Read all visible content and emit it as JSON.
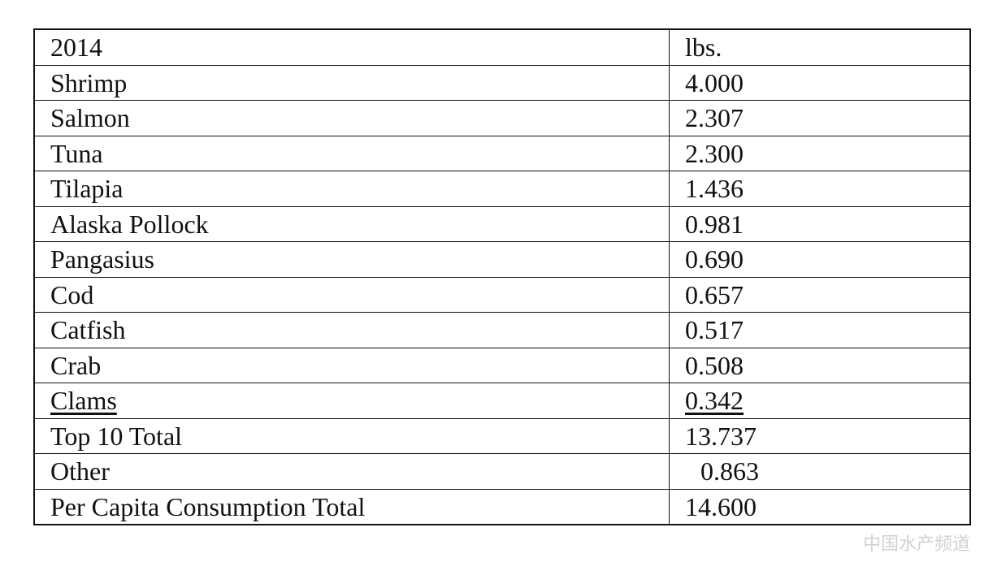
{
  "table": {
    "rows": [
      [
        "2014",
        "lbs."
      ],
      [
        "Shrimp",
        "4.000"
      ],
      [
        "Salmon",
        "2.307"
      ],
      [
        "Tuna",
        "2.300"
      ],
      [
        "Tilapia",
        "1.436"
      ],
      [
        "Alaska Pollock",
        "0.981"
      ],
      [
        "Pangasius",
        "0.690"
      ],
      [
        "Cod",
        "0.657"
      ],
      [
        "Catfish",
        "0.517"
      ],
      [
        "Crab",
        "0.508"
      ],
      [
        "Clams",
        "0.342"
      ],
      [
        "Top 10 Total",
        "13.737"
      ],
      [
        "Other",
        "0.863"
      ],
      [
        "Per Capita Consumption Total",
        "14.600"
      ]
    ]
  },
  "watermark": "中国水产频道"
}
